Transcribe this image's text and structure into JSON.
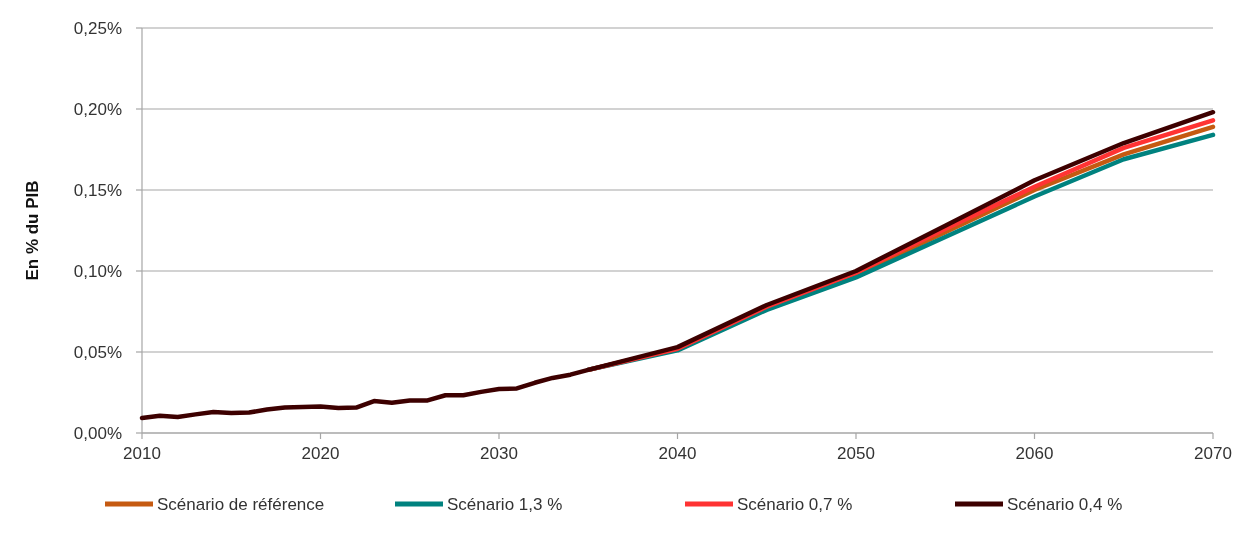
{
  "chart_data": {
    "type": "line",
    "ylabel": "En % du PIB",
    "x": [
      2010,
      2011,
      2012,
      2013,
      2014,
      2015,
      2016,
      2017,
      2018,
      2019,
      2020,
      2021,
      2022,
      2023,
      2024,
      2025,
      2026,
      2027,
      2028,
      2029,
      2030,
      2031,
      2032,
      2033,
      2034,
      2035,
      2040,
      2045,
      2050,
      2055,
      2060,
      2065,
      2070
    ],
    "series": [
      {
        "name": "Scénario de référence",
        "color": "#c55a11",
        "values": [
          null,
          null,
          null,
          null,
          null,
          null,
          null,
          null,
          null,
          null,
          null,
          null,
          null,
          null,
          null,
          null,
          null,
          null,
          null,
          null,
          null,
          null,
          null,
          null,
          null,
          0.039,
          0.052,
          0.077,
          0.098,
          0.124,
          0.15,
          0.172,
          0.189
        ]
      },
      {
        "name": "Scénario 1,3 %",
        "color": "#00827f",
        "values": [
          null,
          null,
          null,
          null,
          null,
          null,
          null,
          null,
          null,
          null,
          null,
          null,
          null,
          null,
          null,
          null,
          null,
          null,
          null,
          null,
          null,
          null,
          null,
          null,
          null,
          0.039,
          0.051,
          0.076,
          0.096,
          0.121,
          0.146,
          0.169,
          0.184
        ]
      },
      {
        "name": "Scénario 0,7 %",
        "color": "#ff3333",
        "values": [
          null,
          null,
          null,
          null,
          null,
          null,
          null,
          null,
          null,
          null,
          null,
          null,
          null,
          null,
          null,
          null,
          null,
          null,
          null,
          null,
          null,
          null,
          null,
          null,
          null,
          0.039,
          0.052,
          0.078,
          0.099,
          0.126,
          0.152,
          0.176,
          0.193
        ]
      },
      {
        "name": "Scénario 0,4 %",
        "color": "#3d0000",
        "values": [
          0.0093,
          0.0107,
          0.0099,
          0.0115,
          0.013,
          0.0124,
          0.0126,
          0.0145,
          0.0157,
          0.016,
          0.0164,
          0.0155,
          0.0157,
          0.0197,
          0.0187,
          0.02,
          0.0201,
          0.0233,
          0.0233,
          0.0254,
          0.0271,
          0.0275,
          0.031,
          0.034,
          0.036,
          0.039,
          0.053,
          0.079,
          0.1,
          0.128,
          0.156,
          0.179,
          0.198
        ]
      }
    ],
    "xlim": [
      2010,
      2070
    ],
    "xticks": [
      2010,
      2020,
      2030,
      2040,
      2050,
      2060,
      2070
    ],
    "ylim": [
      0,
      0.25
    ],
    "yticks": [
      {
        "value": 0,
        "label": "0,00%"
      },
      {
        "value": 0.05,
        "label": "0,05%"
      },
      {
        "value": 0.1,
        "label": "0,10%"
      },
      {
        "value": 0.15,
        "label": "0,15%"
      },
      {
        "value": 0.2,
        "label": "0,20%"
      },
      {
        "value": 0.25,
        "label": "0,25%"
      }
    ],
    "grid": "y",
    "legend": "bottom",
    "line_style": "solid",
    "marker": "none"
  }
}
